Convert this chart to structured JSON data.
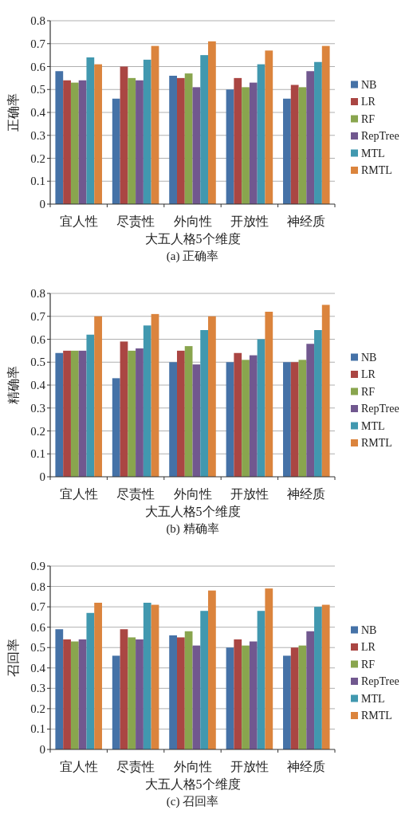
{
  "chart_data": [
    {
      "type": "bar",
      "title": "(a) 正确率",
      "xlabel": "大五人格5个维度",
      "ylabel": "正确率",
      "categories": [
        "宜人性",
        "尽责性",
        "外向性",
        "开放性",
        "神经质"
      ],
      "series": [
        {
          "name": "NB",
          "color": "#4572a7",
          "values": [
            0.58,
            0.46,
            0.56,
            0.5,
            0.46
          ]
        },
        {
          "name": "LR",
          "color": "#aa4643",
          "values": [
            0.54,
            0.6,
            0.55,
            0.55,
            0.52
          ]
        },
        {
          "name": "RF",
          "color": "#89a54e",
          "values": [
            0.53,
            0.55,
            0.57,
            0.51,
            0.51
          ]
        },
        {
          "name": "RepTree",
          "color": "#71588f",
          "values": [
            0.54,
            0.54,
            0.51,
            0.53,
            0.58
          ]
        },
        {
          "name": "MTL",
          "color": "#4198af",
          "values": [
            0.64,
            0.63,
            0.65,
            0.61,
            0.62
          ]
        },
        {
          "name": "RMTL",
          "color": "#db843d",
          "values": [
            0.61,
            0.69,
            0.71,
            0.67,
            0.69
          ]
        }
      ],
      "ylim": [
        0,
        0.8
      ],
      "yticks": [
        0,
        0.1,
        0.2,
        0.3,
        0.4,
        0.5,
        0.6,
        0.7,
        0.8
      ],
      "grid": "y",
      "legend": "right"
    },
    {
      "type": "bar",
      "title": "(b) 精确率",
      "xlabel": "大五人格5个维度",
      "ylabel": "精确率",
      "categories": [
        "宜人性",
        "尽责性",
        "外向性",
        "开放性",
        "神经质"
      ],
      "series": [
        {
          "name": "NB",
          "color": "#4572a7",
          "values": [
            0.54,
            0.43,
            0.5,
            0.5,
            0.5
          ]
        },
        {
          "name": "LR",
          "color": "#aa4643",
          "values": [
            0.55,
            0.59,
            0.55,
            0.54,
            0.5
          ]
        },
        {
          "name": "RF",
          "color": "#89a54e",
          "values": [
            0.55,
            0.55,
            0.57,
            0.51,
            0.51
          ]
        },
        {
          "name": "RepTree",
          "color": "#71588f",
          "values": [
            0.55,
            0.56,
            0.49,
            0.53,
            0.58
          ]
        },
        {
          "name": "MTL",
          "color": "#4198af",
          "values": [
            0.62,
            0.66,
            0.64,
            0.6,
            0.64
          ]
        },
        {
          "name": "RMTL",
          "color": "#db843d",
          "values": [
            0.7,
            0.71,
            0.7,
            0.72,
            0.75
          ]
        }
      ],
      "ylim": [
        0,
        0.8
      ],
      "yticks": [
        0,
        0.1,
        0.2,
        0.3,
        0.4,
        0.5,
        0.6,
        0.7,
        0.8
      ],
      "grid": "y",
      "legend": "right"
    },
    {
      "type": "bar",
      "title": "(c) 召回率",
      "xlabel": "大五人格5个维度",
      "ylabel": "召回率",
      "categories": [
        "宜人性",
        "尽责性",
        "外向性",
        "开放性",
        "神经质"
      ],
      "series": [
        {
          "name": "NB",
          "color": "#4572a7",
          "values": [
            0.59,
            0.46,
            0.56,
            0.5,
            0.46
          ]
        },
        {
          "name": "LR",
          "color": "#aa4643",
          "values": [
            0.54,
            0.59,
            0.55,
            0.54,
            0.5
          ]
        },
        {
          "name": "RF",
          "color": "#89a54e",
          "values": [
            0.53,
            0.55,
            0.58,
            0.51,
            0.51
          ]
        },
        {
          "name": "RepTree",
          "color": "#71588f",
          "values": [
            0.54,
            0.54,
            0.51,
            0.53,
            0.58
          ]
        },
        {
          "name": "MTL",
          "color": "#4198af",
          "values": [
            0.67,
            0.72,
            0.68,
            0.68,
            0.7
          ]
        },
        {
          "name": "RMTL",
          "color": "#db843d",
          "values": [
            0.72,
            0.71,
            0.78,
            0.79,
            0.71
          ]
        }
      ],
      "ylim": [
        0,
        0.9
      ],
      "yticks": [
        0,
        0.1,
        0.2,
        0.3,
        0.4,
        0.5,
        0.6,
        0.7,
        0.8,
        0.9
      ],
      "grid": "y",
      "legend": "right"
    }
  ]
}
